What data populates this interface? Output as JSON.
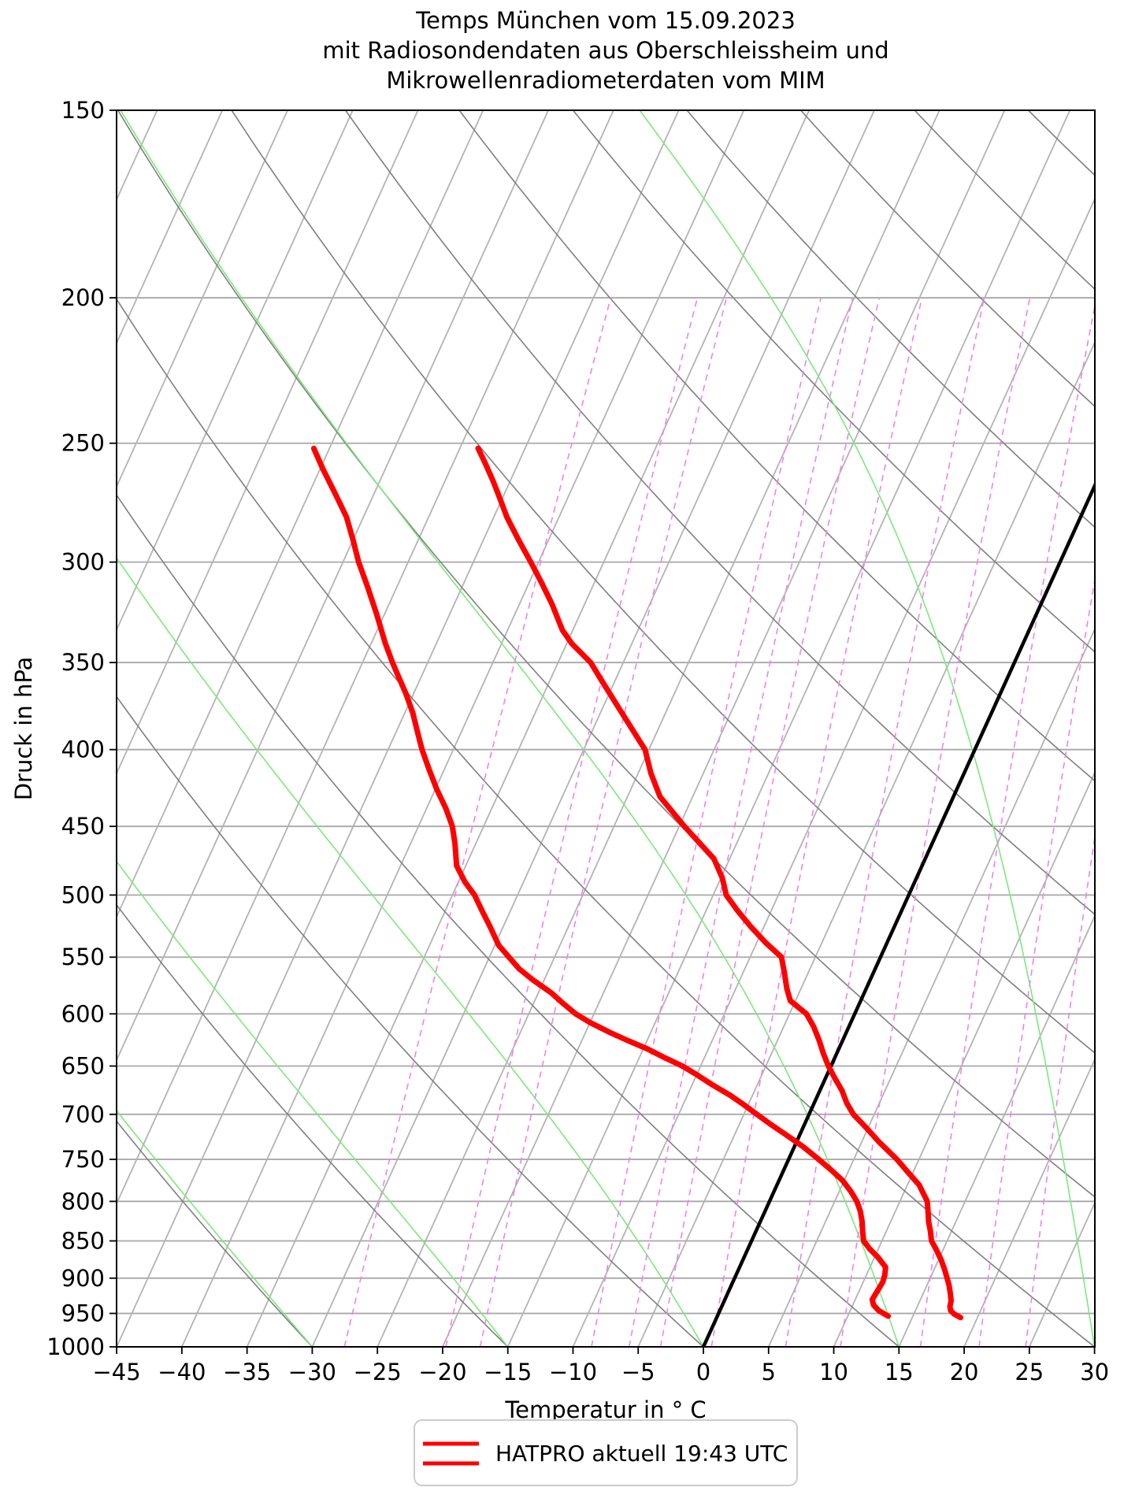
{
  "title": {
    "line1": "Temps München vom 15.09.2023",
    "line2": "mit Radiosondendaten aus Oberschleissheim und",
    "line3": "Mikrowellenradiometerdaten vom MIM"
  },
  "axes": {
    "x_label": "Temperatur in ° C",
    "y_label": "Druck in hPa"
  },
  "legend": {
    "label": "HATPRO aktuell 19:43 UTC"
  },
  "chart_data": {
    "type": "line",
    "subtype": "skewT-logP-sounding",
    "title": "Temps München vom 15.09.2023 mit Radiosondendaten aus Oberschleissheim und Mikrowellenradiometerdaten vom MIM",
    "xlabel": "Temperatur in ° C",
    "ylabel": "Druck in hPa",
    "x_axis": {
      "min": -45,
      "max": 30,
      "ticks": [
        -45,
        -40,
        -35,
        -30,
        -25,
        -20,
        -15,
        -10,
        -5,
        0,
        5,
        10,
        15,
        20,
        25,
        30
      ],
      "unit": "°C"
    },
    "y_axis": {
      "scale": "log",
      "min": 150,
      "max": 1000,
      "ticks": [
        150,
        200,
        250,
        300,
        350,
        400,
        450,
        500,
        550,
        600,
        650,
        700,
        750,
        800,
        850,
        900,
        950,
        1000
      ],
      "unit": "hPa"
    },
    "grid": {
      "pressure_lines_hPa": [
        200,
        250,
        300,
        350,
        400,
        450,
        500,
        550,
        600,
        650,
        700,
        750,
        800,
        850,
        900,
        950
      ],
      "isotherm_min_c": -90,
      "isotherm_max_c": 30,
      "isotherm_step_c": 5,
      "zero_isotherm_c": 0,
      "dry_adiabats_theta_c": [
        -45,
        -30,
        -15,
        0,
        15,
        30,
        45,
        60,
        75,
        90,
        105,
        120,
        135,
        150,
        165
      ],
      "moist_adiabats_thetaw_c": [
        -45,
        -30,
        -15,
        0,
        15,
        30,
        45
      ],
      "mixing_ratio_g_kg": [
        0.4,
        0.8,
        1,
        2,
        2.5,
        3,
        4,
        6,
        8,
        12,
        16,
        20,
        30
      ],
      "mixing_ratio_top_hPa": 200
    },
    "colors": {
      "temperature_curve": "#ff0000",
      "dewpoint_curve": "#ff0000",
      "zero_isotherm": "#000000",
      "isotherms": "#b3b3b3",
      "pressure_lines": "#a8a8a8",
      "dry_adiabats": "#7f7f7f",
      "moist_adiabats": "#7ce87c",
      "mixing_ratio": "#ee82ee",
      "legend_border": "#cccccc"
    },
    "legend": {
      "position": "bottom-center",
      "entries": [
        "HATPRO aktuell 19:43 UTC"
      ]
    },
    "series": [
      {
        "name": "temperature",
        "legend_label": "HATPRO aktuell 19:43 UTC",
        "points_p_hPa_T_c": [
          [
            252,
            -48.6
          ],
          [
            258,
            -47.5
          ],
          [
            265,
            -46.3
          ],
          [
            272,
            -45.2
          ],
          [
            280,
            -44.0
          ],
          [
            290,
            -42.3
          ],
          [
            300,
            -40.6
          ],
          [
            310,
            -39.0
          ],
          [
            320,
            -37.5
          ],
          [
            333,
            -35.8
          ],
          [
            340,
            -34.6
          ],
          [
            350,
            -32.5
          ],
          [
            360,
            -31.0
          ],
          [
            375,
            -28.8
          ],
          [
            400,
            -25.3
          ],
          [
            415,
            -24.0
          ],
          [
            430,
            -22.5
          ],
          [
            450,
            -19.6
          ],
          [
            462,
            -17.8
          ],
          [
            473,
            -16.2
          ],
          [
            487,
            -14.9
          ],
          [
            500,
            -14.0
          ],
          [
            512,
            -12.6
          ],
          [
            525,
            -11.0
          ],
          [
            538,
            -9.3
          ],
          [
            550,
            -7.6
          ],
          [
            562,
            -6.9
          ],
          [
            577,
            -6.1
          ],
          [
            588,
            -5.4
          ],
          [
            600,
            -3.7
          ],
          [
            612,
            -2.7
          ],
          [
            625,
            -1.8
          ],
          [
            638,
            -1.0
          ],
          [
            650,
            -0.2
          ],
          [
            662,
            0.7
          ],
          [
            675,
            1.7
          ],
          [
            688,
            2.5
          ],
          [
            700,
            3.4
          ],
          [
            715,
            4.9
          ],
          [
            730,
            6.3
          ],
          [
            750,
            8.3
          ],
          [
            765,
            9.6
          ],
          [
            780,
            10.9
          ],
          [
            800,
            12.1
          ],
          [
            812,
            12.5
          ],
          [
            825,
            12.9
          ],
          [
            838,
            13.4
          ],
          [
            850,
            13.8
          ],
          [
            862,
            14.5
          ],
          [
            875,
            15.2
          ],
          [
            888,
            15.8
          ],
          [
            900,
            16.3
          ],
          [
            910,
            16.7
          ],
          [
            922,
            17.1
          ],
          [
            932,
            17.4
          ],
          [
            940,
            17.5
          ],
          [
            946,
            17.7
          ],
          [
            951,
            18.1
          ],
          [
            956,
            18.7
          ]
        ]
      },
      {
        "name": "dewpoint",
        "legend_label": "HATPRO aktuell 19:43 UTC",
        "points_p_hPa_T_c": [
          [
            252,
            -61.2
          ],
          [
            260,
            -59.8
          ],
          [
            270,
            -58.0
          ],
          [
            280,
            -56.3
          ],
          [
            290,
            -55.0
          ],
          [
            300,
            -53.8
          ],
          [
            312,
            -52.2
          ],
          [
            325,
            -50.6
          ],
          [
            340,
            -48.9
          ],
          [
            350,
            -47.7
          ],
          [
            358,
            -46.7
          ],
          [
            367,
            -45.6
          ],
          [
            378,
            -44.4
          ],
          [
            390,
            -43.3
          ],
          [
            400,
            -42.4
          ],
          [
            412,
            -41.2
          ],
          [
            425,
            -39.9
          ],
          [
            438,
            -38.5
          ],
          [
            450,
            -37.4
          ],
          [
            462,
            -36.6
          ],
          [
            478,
            -35.7
          ],
          [
            490,
            -34.5
          ],
          [
            500,
            -33.3
          ],
          [
            512,
            -32.2
          ],
          [
            525,
            -31.0
          ],
          [
            540,
            -29.7
          ],
          [
            550,
            -28.5
          ],
          [
            560,
            -27.3
          ],
          [
            570,
            -25.8
          ],
          [
            581,
            -24.0
          ],
          [
            590,
            -22.8
          ],
          [
            600,
            -21.4
          ],
          [
            608,
            -20.0
          ],
          [
            617,
            -18.2
          ],
          [
            625,
            -16.5
          ],
          [
            633,
            -14.7
          ],
          [
            642,
            -13.0
          ],
          [
            650,
            -11.4
          ],
          [
            658,
            -10.1
          ],
          [
            668,
            -8.6
          ],
          [
            680,
            -6.7
          ],
          [
            690,
            -5.3
          ],
          [
            700,
            -4.0
          ],
          [
            710,
            -2.7
          ],
          [
            722,
            -1.1
          ],
          [
            735,
            0.6
          ],
          [
            750,
            2.3
          ],
          [
            762,
            3.6
          ],
          [
            775,
            4.9
          ],
          [
            788,
            5.9
          ],
          [
            800,
            6.7
          ],
          [
            812,
            7.3
          ],
          [
            825,
            7.8
          ],
          [
            838,
            8.2
          ],
          [
            850,
            8.6
          ],
          [
            860,
            9.3
          ],
          [
            872,
            10.3
          ],
          [
            885,
            11.2
          ],
          [
            895,
            11.4
          ],
          [
            905,
            11.5
          ],
          [
            918,
            11.4
          ],
          [
            930,
            11.3
          ],
          [
            938,
            11.6
          ],
          [
            946,
            12.2
          ],
          [
            954,
            13.1
          ]
        ]
      }
    ]
  }
}
